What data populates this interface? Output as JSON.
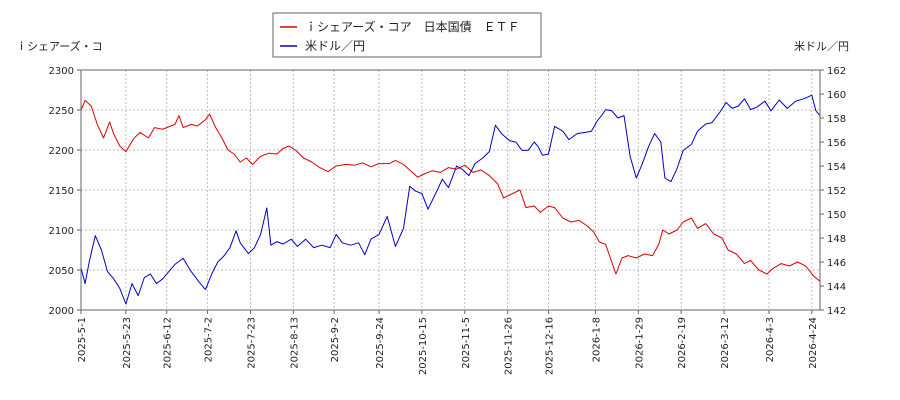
{
  "chart_data": {
    "type": "line",
    "left_axis_label": "ｉシェアーズ・コ",
    "right_axis_label": "米ドル／円",
    "left_ylim": [
      2000,
      2300
    ],
    "right_ylim": [
      142,
      162
    ],
    "grid": true,
    "legend_position": "top-center",
    "x_tick_labels": [
      "2025-5-1",
      "2025-5-23",
      "2025-6-12",
      "2025-7-2",
      "2025-7-23",
      "2025-8-13",
      "2025-9-2",
      "2025-9-24",
      "2025-10-15",
      "2025-11-5",
      "2025-11-26",
      "2025-12-16",
      "2026-1-8",
      "2026-1-29",
      "2026-2-19",
      "2026-3-12",
      "2026-4-3",
      "2026-4-24"
    ],
    "left_ticks": [
      2000,
      2050,
      2100,
      2150,
      2200,
      2250,
      2300
    ],
    "right_ticks": [
      142,
      144,
      146,
      148,
      150,
      152,
      154,
      156,
      158,
      160,
      162
    ],
    "x_range": [
      "2025-5-1",
      "2026-4-28"
    ],
    "series": [
      {
        "name": "ｉシェアーズ・コア　日本国債　ＥＴＦ",
        "axis": "left",
        "color": "#dd0000",
        "points": [
          [
            "2025-5-1",
            2250
          ],
          [
            "2025-5-3",
            2262
          ],
          [
            "2025-5-6",
            2255
          ],
          [
            "2025-5-9",
            2232
          ],
          [
            "2025-5-12",
            2215
          ],
          [
            "2025-5-15",
            2235
          ],
          [
            "2025-5-17",
            2220
          ],
          [
            "2025-5-20",
            2205
          ],
          [
            "2025-5-23",
            2198
          ],
          [
            "2025-5-27",
            2215
          ],
          [
            "2025-5-30",
            2222
          ],
          [
            "2025-6-3",
            2215
          ],
          [
            "2025-6-6",
            2228
          ],
          [
            "2025-6-10",
            2226
          ],
          [
            "2025-6-12",
            2228
          ],
          [
            "2025-6-16",
            2232
          ],
          [
            "2025-6-18",
            2243
          ],
          [
            "2025-6-20",
            2228
          ],
          [
            "2025-6-24",
            2232
          ],
          [
            "2025-6-27",
            2230
          ],
          [
            "2025-7-1",
            2238
          ],
          [
            "2025-7-3",
            2245
          ],
          [
            "2025-7-6",
            2228
          ],
          [
            "2025-7-9",
            2215
          ],
          [
            "2025-7-12",
            2200
          ],
          [
            "2025-7-15",
            2195
          ],
          [
            "2025-7-18",
            2185
          ],
          [
            "2025-7-21",
            2190
          ],
          [
            "2025-7-24",
            2182
          ],
          [
            "2025-7-28",
            2192
          ],
          [
            "2025-8-1",
            2196
          ],
          [
            "2025-8-5",
            2195
          ],
          [
            "2025-8-8",
            2202
          ],
          [
            "2025-8-11",
            2205
          ],
          [
            "2025-8-14",
            2200
          ],
          [
            "2025-8-18",
            2190
          ],
          [
            "2025-8-22",
            2185
          ],
          [
            "2025-8-26",
            2178
          ],
          [
            "2025-8-30",
            2173
          ],
          [
            "2025-9-3",
            2180
          ],
          [
            "2025-9-8",
            2182
          ],
          [
            "2025-9-12",
            2181
          ],
          [
            "2025-9-16",
            2184
          ],
          [
            "2025-9-20",
            2179
          ],
          [
            "2025-9-24",
            2183
          ],
          [
            "2025-9-29",
            2183
          ],
          [
            "2025-10-2",
            2187
          ],
          [
            "2025-10-6",
            2182
          ],
          [
            "2025-10-9",
            2175
          ],
          [
            "2025-10-13",
            2166
          ],
          [
            "2025-10-16",
            2170
          ],
          [
            "2025-10-20",
            2174
          ],
          [
            "2025-10-24",
            2172
          ],
          [
            "2025-10-28",
            2178
          ],
          [
            "2025-11-1",
            2176
          ],
          [
            "2025-11-5",
            2181
          ],
          [
            "2025-11-9",
            2172
          ],
          [
            "2025-11-13",
            2175
          ],
          [
            "2025-11-17",
            2168
          ],
          [
            "2025-11-21",
            2158
          ],
          [
            "2025-11-24",
            2140
          ],
          [
            "2025-11-28",
            2145
          ],
          [
            "2025-12-2",
            2150
          ],
          [
            "2025-12-5",
            2128
          ],
          [
            "2025-12-9",
            2130
          ],
          [
            "2025-12-12",
            2122
          ],
          [
            "2025-12-16",
            2130
          ],
          [
            "2025-12-19",
            2128
          ],
          [
            "2025-12-23",
            2115
          ],
          [
            "2025-12-27",
            2110
          ],
          [
            "2025-12-31",
            2112
          ],
          [
            "2026-1-4",
            2105
          ],
          [
            "2026-1-7",
            2098
          ],
          [
            "2026-1-10",
            2085
          ],
          [
            "2026-1-13",
            2082
          ],
          [
            "2026-1-16",
            2060
          ],
          [
            "2026-1-18",
            2045
          ],
          [
            "2026-1-21",
            2065
          ],
          [
            "2026-1-24",
            2068
          ],
          [
            "2026-1-28",
            2065
          ],
          [
            "2026-2-1",
            2070
          ],
          [
            "2026-2-5",
            2068
          ],
          [
            "2026-2-8",
            2082
          ],
          [
            "2026-2-10",
            2100
          ],
          [
            "2026-2-13",
            2095
          ],
          [
            "2026-2-17",
            2100
          ],
          [
            "2026-2-20",
            2110
          ],
          [
            "2026-2-24",
            2115
          ],
          [
            "2026-2-27",
            2102
          ],
          [
            "2026-3-3",
            2108
          ],
          [
            "2026-3-7",
            2095
          ],
          [
            "2026-3-11",
            2090
          ],
          [
            "2026-3-14",
            2075
          ],
          [
            "2026-3-18",
            2070
          ],
          [
            "2026-3-22",
            2058
          ],
          [
            "2026-3-25",
            2062
          ],
          [
            "2026-3-29",
            2050
          ],
          [
            "2026-4-2",
            2045
          ],
          [
            "2026-4-5",
            2052
          ],
          [
            "2026-4-9",
            2058
          ],
          [
            "2026-4-13",
            2055
          ],
          [
            "2026-4-17",
            2060
          ],
          [
            "2026-4-21",
            2055
          ],
          [
            "2026-4-25",
            2042
          ],
          [
            "2026-4-28",
            2036
          ]
        ]
      },
      {
        "name": "米ドル／円",
        "axis": "right",
        "color": "#0000cc",
        "points": [
          [
            "2025-5-1",
            145.5
          ],
          [
            "2025-5-3",
            144.2
          ],
          [
            "2025-5-5",
            146.0
          ],
          [
            "2025-5-8",
            148.2
          ],
          [
            "2025-5-11",
            147.0
          ],
          [
            "2025-5-14",
            145.2
          ],
          [
            "2025-5-17",
            144.6
          ],
          [
            "2025-5-20",
            143.8
          ],
          [
            "2025-5-23",
            142.5
          ],
          [
            "2025-5-26",
            144.2
          ],
          [
            "2025-5-29",
            143.2
          ],
          [
            "2025-6-1",
            144.7
          ],
          [
            "2025-6-4",
            145.0
          ],
          [
            "2025-6-7",
            144.2
          ],
          [
            "2025-6-10",
            144.6
          ],
          [
            "2025-6-13",
            145.2
          ],
          [
            "2025-6-16",
            145.8
          ],
          [
            "2025-6-20",
            146.3
          ],
          [
            "2025-6-24",
            145.2
          ],
          [
            "2025-6-28",
            144.3
          ],
          [
            "2025-7-1",
            143.7
          ],
          [
            "2025-7-4",
            145.0
          ],
          [
            "2025-7-7",
            146.0
          ],
          [
            "2025-7-10",
            146.5
          ],
          [
            "2025-7-13",
            147.2
          ],
          [
            "2025-7-16",
            148.6
          ],
          [
            "2025-7-18",
            147.6
          ],
          [
            "2025-7-22",
            146.7
          ],
          [
            "2025-7-25",
            147.2
          ],
          [
            "2025-7-28",
            148.3
          ],
          [
            "2025-7-31",
            150.5
          ],
          [
            "2025-8-2",
            147.4
          ],
          [
            "2025-8-5",
            147.7
          ],
          [
            "2025-8-8",
            147.5
          ],
          [
            "2025-8-12",
            147.9
          ],
          [
            "2025-8-15",
            147.3
          ],
          [
            "2025-8-19",
            147.9
          ],
          [
            "2025-8-23",
            147.2
          ],
          [
            "2025-8-27",
            147.4
          ],
          [
            "2025-8-31",
            147.2
          ],
          [
            "2025-9-3",
            148.3
          ],
          [
            "2025-9-6",
            147.6
          ],
          [
            "2025-9-10",
            147.4
          ],
          [
            "2025-9-14",
            147.6
          ],
          [
            "2025-9-17",
            146.6
          ],
          [
            "2025-9-20",
            147.9
          ],
          [
            "2025-9-24",
            148.3
          ],
          [
            "2025-9-28",
            149.8
          ],
          [
            "2025-10-2",
            147.3
          ],
          [
            "2025-10-6",
            148.8
          ],
          [
            "2025-10-9",
            152.3
          ],
          [
            "2025-10-12",
            151.9
          ],
          [
            "2025-10-15",
            151.7
          ],
          [
            "2025-10-18",
            150.4
          ],
          [
            "2025-10-22",
            151.8
          ],
          [
            "2025-10-25",
            152.9
          ],
          [
            "2025-10-28",
            152.2
          ],
          [
            "2025-11-1",
            154.0
          ],
          [
            "2025-11-4",
            153.7
          ],
          [
            "2025-11-7",
            153.2
          ],
          [
            "2025-11-10",
            154.2
          ],
          [
            "2025-11-14",
            154.7
          ],
          [
            "2025-11-17",
            155.2
          ],
          [
            "2025-11-20",
            157.4
          ],
          [
            "2025-11-23",
            156.7
          ],
          [
            "2025-11-27",
            156.1
          ],
          [
            "2025-11-30",
            156.0
          ],
          [
            "2025-12-3",
            155.3
          ],
          [
            "2025-12-6",
            155.3
          ],
          [
            "2025-12-9",
            156.0
          ],
          [
            "2025-12-11",
            155.6
          ],
          [
            "2025-12-13",
            154.9
          ],
          [
            "2025-12-16",
            155.0
          ],
          [
            "2025-12-19",
            157.3
          ],
          [
            "2025-12-23",
            156.9
          ],
          [
            "2025-12-26",
            156.2
          ],
          [
            "2025-12-30",
            156.7
          ],
          [
            "2026-1-3",
            156.8
          ],
          [
            "2026-1-6",
            156.9
          ],
          [
            "2026-1-9",
            157.8
          ],
          [
            "2026-1-11",
            158.2
          ],
          [
            "2026-1-13",
            158.7
          ],
          [
            "2026-1-16",
            158.6
          ],
          [
            "2026-1-19",
            158.0
          ],
          [
            "2026-1-22",
            158.2
          ],
          [
            "2026-1-25",
            154.8
          ],
          [
            "2026-1-28",
            153.0
          ],
          [
            "2026-1-31",
            154.2
          ],
          [
            "2026-2-3",
            155.6
          ],
          [
            "2026-2-6",
            156.7
          ],
          [
            "2026-2-9",
            156.0
          ],
          [
            "2026-2-11",
            153.0
          ],
          [
            "2026-2-14",
            152.7
          ],
          [
            "2026-2-17",
            153.8
          ],
          [
            "2026-2-20",
            155.3
          ],
          [
            "2026-2-24",
            155.8
          ],
          [
            "2026-2-27",
            156.9
          ],
          [
            "2026-3-3",
            157.5
          ],
          [
            "2026-3-6",
            157.6
          ],
          [
            "2026-3-10",
            158.5
          ],
          [
            "2026-3-13",
            159.3
          ],
          [
            "2026-3-16",
            158.8
          ],
          [
            "2026-3-19",
            159.0
          ],
          [
            "2026-3-22",
            159.6
          ],
          [
            "2026-3-25",
            158.7
          ],
          [
            "2026-3-28",
            158.9
          ],
          [
            "2026-4-1",
            159.4
          ],
          [
            "2026-4-4",
            158.6
          ],
          [
            "2026-4-8",
            159.5
          ],
          [
            "2026-4-12",
            158.8
          ],
          [
            "2026-4-16",
            159.4
          ],
          [
            "2026-4-20",
            159.6
          ],
          [
            "2026-4-24",
            159.9
          ],
          [
            "2026-4-26",
            158.6
          ],
          [
            "2026-4-28",
            158.2
          ]
        ]
      }
    ]
  }
}
